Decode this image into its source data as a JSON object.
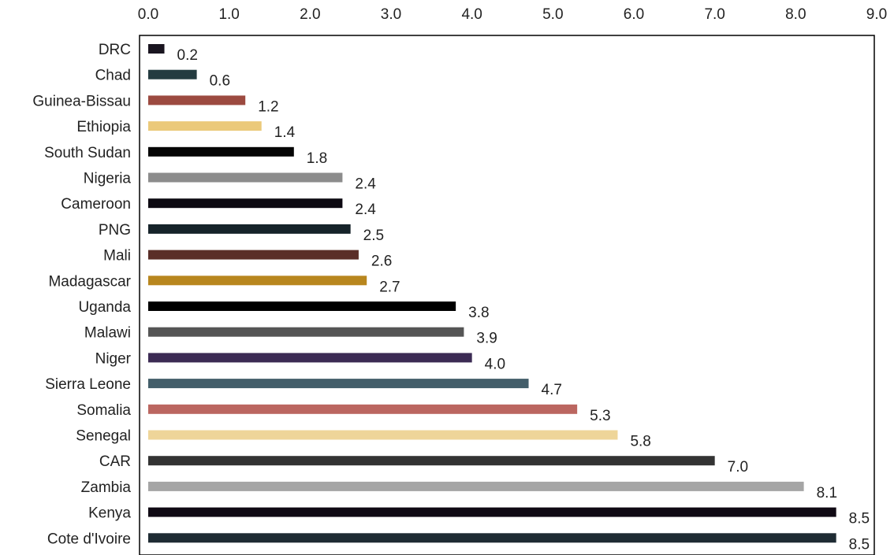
{
  "chart_data": {
    "type": "bar",
    "orientation": "horizontal",
    "axis_position": "top",
    "xlim": [
      0,
      9
    ],
    "ticks": [
      "0.0",
      "1.0",
      "2.0",
      "3.0",
      "4.0",
      "5.0",
      "6.0",
      "7.0",
      "8.0",
      "9.0"
    ],
    "grid": false,
    "legend": "none",
    "title": "",
    "xlabel": "",
    "ylabel": "",
    "categories": [
      "DRC",
      "Chad",
      "Guinea-Bissau",
      "Ethiopia",
      "South Sudan",
      "Nigeria",
      "Cameroon",
      "PNG",
      "Mali",
      "Madagascar",
      "Uganda",
      "Malawi",
      "Niger",
      "Sierra Leone",
      "Somalia",
      "Senegal",
      "CAR",
      "Zambia",
      "Kenya",
      "Cote d'Ivoire"
    ],
    "values": [
      0.2,
      0.6,
      1.2,
      1.4,
      1.8,
      2.4,
      2.4,
      2.5,
      2.6,
      2.7,
      3.8,
      3.9,
      4.0,
      4.7,
      5.3,
      5.8,
      7.0,
      8.1,
      8.5,
      8.5
    ],
    "labels": [
      "0.2",
      "0.6",
      "1.2",
      "1.4",
      "1.8",
      "2.4",
      "2.4",
      "2.5",
      "2.6",
      "2.7",
      "3.8",
      "3.9",
      "4.0",
      "4.7",
      "5.3",
      "5.8",
      "7.0",
      "8.1",
      "8.5",
      "8.5"
    ],
    "colors": [
      "#1a1520",
      "#243b40",
      "#9c4a40",
      "#ebc97a",
      "#050505",
      "#8c8c8c",
      "#0d0a12",
      "#16232a",
      "#5a2e28",
      "#b8861e",
      "#000000",
      "#555555",
      "#3c2b54",
      "#435e6a",
      "#bb6660",
      "#eed599",
      "#333333",
      "#a5a5a5",
      "#100a14",
      "#1e2b33"
    ]
  }
}
